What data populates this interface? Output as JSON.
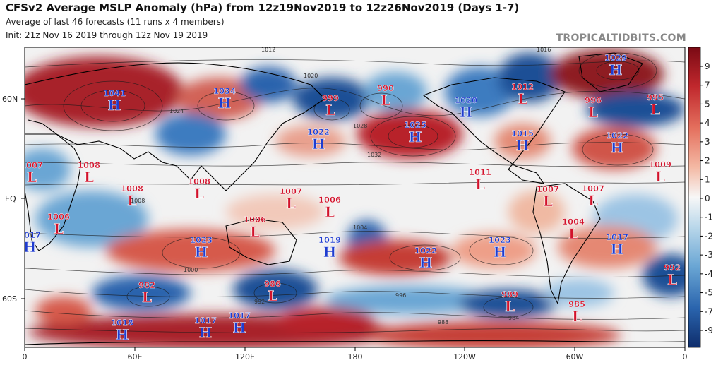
{
  "header": {
    "title": "CFSv2 Average MSLP Anomaly (hPa) from 12z19Nov2019 to 12z26Nov2019 (Days 1-7)",
    "line2": "Average of last 46 forecasts (11 runs x 4 members)",
    "line3": "Init: 21z Nov 16 2019 through 12z Nov 19 2019",
    "brand": "TROPICALTIDBITS.COM"
  },
  "axes": {
    "lat_labels": [
      "60N",
      "EQ",
      "60S"
    ],
    "lon_labels": [
      "0",
      "60E",
      "120E",
      "180",
      "120W",
      "60W",
      "0"
    ]
  },
  "colorbar": {
    "ticks": [
      "9",
      "7",
      "5",
      "4",
      "3",
      "2",
      "1",
      "0",
      "-1",
      "-2",
      "-3",
      "-4",
      "-5",
      "-7",
      "-9"
    ]
  },
  "colors": {
    "high": "#1f3ccf",
    "low": "#d2122b",
    "ocean_neutral": "#f2f2f2"
  },
  "centers": [
    {
      "type": "H",
      "value": "1041"
    },
    {
      "type": "H",
      "value": "1034"
    },
    {
      "type": "L",
      "value": "999"
    },
    {
      "type": "L",
      "value": "990"
    },
    {
      "type": "H",
      "value": "1020"
    },
    {
      "type": "L",
      "value": "1012"
    },
    {
      "type": "H",
      "value": "1029"
    },
    {
      "type": "L",
      "value": "996"
    },
    {
      "type": "L",
      "value": "995"
    },
    {
      "type": "H",
      "value": "1022"
    },
    {
      "type": "H",
      "value": "1025"
    },
    {
      "type": "H",
      "value": "1015"
    },
    {
      "type": "H",
      "value": "1022"
    },
    {
      "type": "L",
      "value": "1007"
    },
    {
      "type": "L",
      "value": "1008"
    },
    {
      "type": "L",
      "value": "1008"
    },
    {
      "type": "L",
      "value": "1008"
    },
    {
      "type": "L",
      "value": "1007"
    },
    {
      "type": "L",
      "value": "1006"
    },
    {
      "type": "L",
      "value": "1011"
    },
    {
      "type": "L",
      "value": "1007"
    },
    {
      "type": "L",
      "value": "1007"
    },
    {
      "type": "L",
      "value": "1009"
    },
    {
      "type": "L",
      "value": "1006"
    },
    {
      "type": "L",
      "value": "1006"
    },
    {
      "type": "L",
      "value": "1004"
    },
    {
      "type": "H",
      "value": "1017"
    },
    {
      "type": "H",
      "value": "1023"
    },
    {
      "type": "H",
      "value": "1019"
    },
    {
      "type": "H",
      "value": "1022"
    },
    {
      "type": "H",
      "value": "1023"
    },
    {
      "type": "H",
      "value": "1017"
    },
    {
      "type": "L",
      "value": "982"
    },
    {
      "type": "L",
      "value": "986"
    },
    {
      "type": "L",
      "value": "989"
    },
    {
      "type": "L",
      "value": "985"
    },
    {
      "type": "L",
      "value": "992"
    },
    {
      "type": "H",
      "value": "1018"
    },
    {
      "type": "H",
      "value": "1017"
    },
    {
      "type": "H",
      "value": "1017"
    }
  ],
  "isobar_labels": [
    "1012",
    "1016",
    "1020",
    "1024",
    "1028",
    "1032",
    "1008",
    "1004",
    "1000",
    "996",
    "992",
    "988",
    "984"
  ]
}
